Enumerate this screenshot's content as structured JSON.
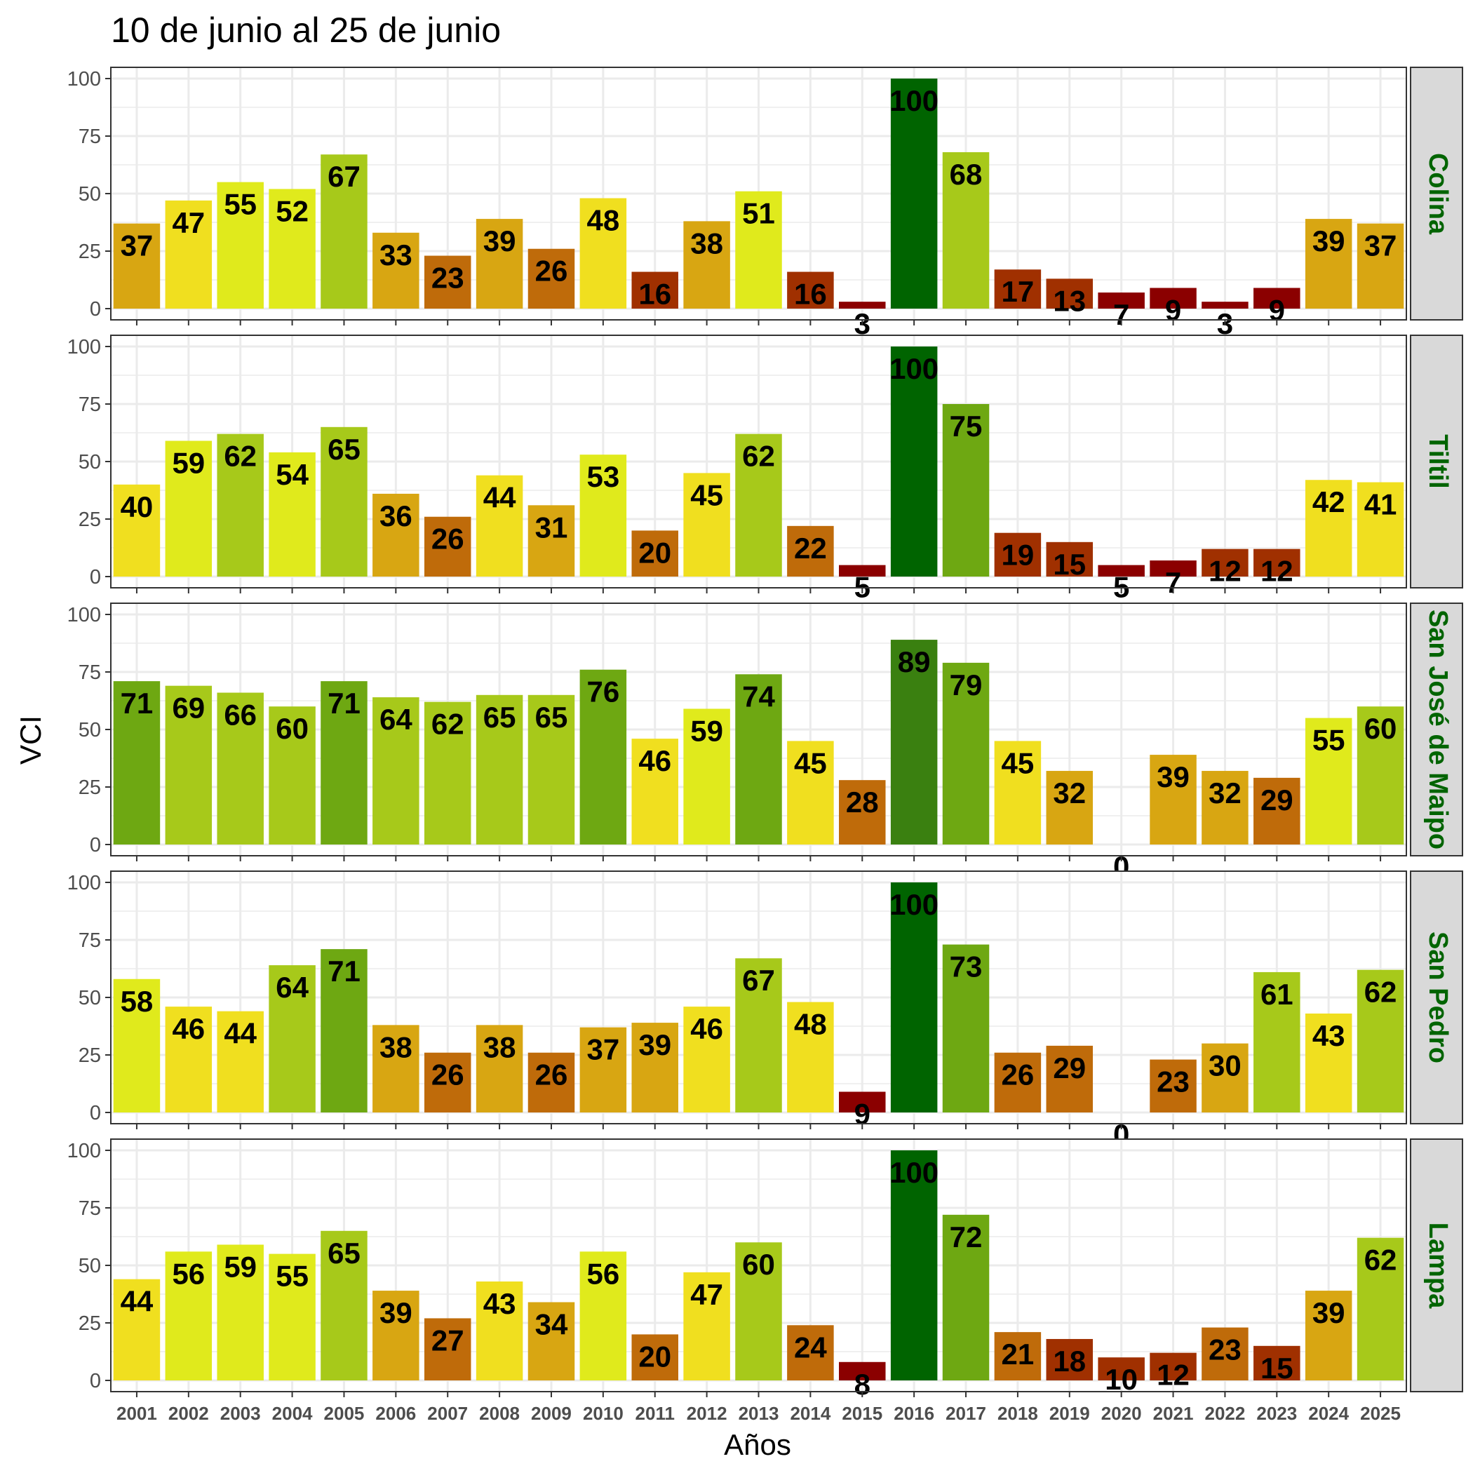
{
  "chart_data": {
    "type": "bar",
    "title": "10 de junio al 25 de junio",
    "xlabel": "Años",
    "ylabel": "VCI",
    "ylim": [
      0,
      100
    ],
    "yticks": [
      0,
      25,
      50,
      75,
      100
    ],
    "grid": true,
    "categories": [
      "2001",
      "2002",
      "2003",
      "2004",
      "2005",
      "2006",
      "2007",
      "2008",
      "2009",
      "2010",
      "2011",
      "2012",
      "2013",
      "2014",
      "2015",
      "2016",
      "2017",
      "2018",
      "2019",
      "2020",
      "2021",
      "2022",
      "2023",
      "2024",
      "2025"
    ],
    "panels": [
      {
        "name": "Colina",
        "values": [
          37,
          47,
          55,
          52,
          67,
          33,
          23,
          39,
          26,
          48,
          16,
          38,
          51,
          16,
          3,
          100,
          68,
          17,
          13,
          7,
          9,
          3,
          9,
          39,
          37
        ],
        "labels": [
          "37",
          "47",
          "55",
          "52",
          "67",
          "33",
          "23",
          "39",
          "26",
          "48",
          "16",
          "38",
          "51",
          "16",
          "3",
          "100",
          "68",
          "17",
          "13",
          "7",
          "9",
          "3",
          "9",
          "39",
          "37"
        ]
      },
      {
        "name": "Tiltil",
        "values": [
          40,
          59,
          62,
          54,
          65,
          36,
          26,
          44,
          31,
          53,
          20,
          45,
          62,
          22,
          5,
          100,
          75,
          19,
          15,
          5,
          7,
          12,
          12,
          42,
          41
        ],
        "labels": [
          "40",
          "59",
          "62",
          "54",
          "65",
          "36",
          "26",
          "44",
          "31",
          "53",
          "20",
          "45",
          "62",
          "22",
          "5",
          "100",
          "75",
          "19",
          "15",
          "5",
          "7",
          "12",
          "12",
          "42",
          "41"
        ]
      },
      {
        "name": "San José de Maipo",
        "values": [
          71,
          69,
          66,
          60,
          71,
          64,
          62,
          65,
          65,
          76,
          46,
          59,
          74,
          45,
          28,
          89,
          79,
          45,
          32,
          0,
          39,
          32,
          29,
          55,
          60
        ],
        "labels": [
          "71",
          "69",
          "66",
          "60",
          "71",
          "64",
          "62",
          "65",
          "65",
          "76",
          "46",
          "59",
          "74",
          "45",
          "28",
          "89",
          "79",
          "45",
          "32",
          "0",
          "39",
          "32",
          "29",
          "55",
          "60"
        ]
      },
      {
        "name": "San Pedro",
        "values": [
          58,
          46,
          44,
          64,
          71,
          38,
          26,
          38,
          26,
          37,
          39,
          46,
          67,
          48,
          9,
          100,
          73,
          26,
          29,
          0,
          23,
          30,
          61,
          43,
          62
        ],
        "labels": [
          "58",
          "46",
          "44",
          "64",
          "71",
          "38",
          "26",
          "38",
          "26",
          "37",
          "39",
          "46",
          "67",
          "48",
          "9",
          "100",
          "73",
          "26",
          "29",
          "0",
          "23",
          "30",
          "61",
          "43",
          "62"
        ]
      },
      {
        "name": "Lampa",
        "values": [
          44,
          56,
          59,
          55,
          65,
          39,
          27,
          43,
          34,
          56,
          20,
          47,
          60,
          24,
          8,
          100,
          72,
          21,
          18,
          10,
          12,
          23,
          15,
          39,
          62
        ],
        "labels": [
          "44",
          "56",
          "59",
          "55",
          "65",
          "39",
          "27",
          "43",
          "34",
          "56",
          "20",
          "47",
          "60",
          "24",
          "8",
          "100",
          "72",
          "21",
          "18",
          "10",
          "12",
          "23",
          "15",
          "39",
          "62"
        ]
      }
    ],
    "colors": {
      "background": "#ffffff",
      "grid": "#ebebeb",
      "panel_border": "#333333",
      "strip_fill": "#d9d9d9",
      "strip_text": "#006400",
      "scale": [
        "#8b0000",
        "#a03000",
        "#bf6b0a",
        "#d8a612",
        "#f0df1f",
        "#e0ea1c",
        "#a7c91a",
        "#6ea812",
        "#3a8010",
        "#006400"
      ]
    }
  }
}
